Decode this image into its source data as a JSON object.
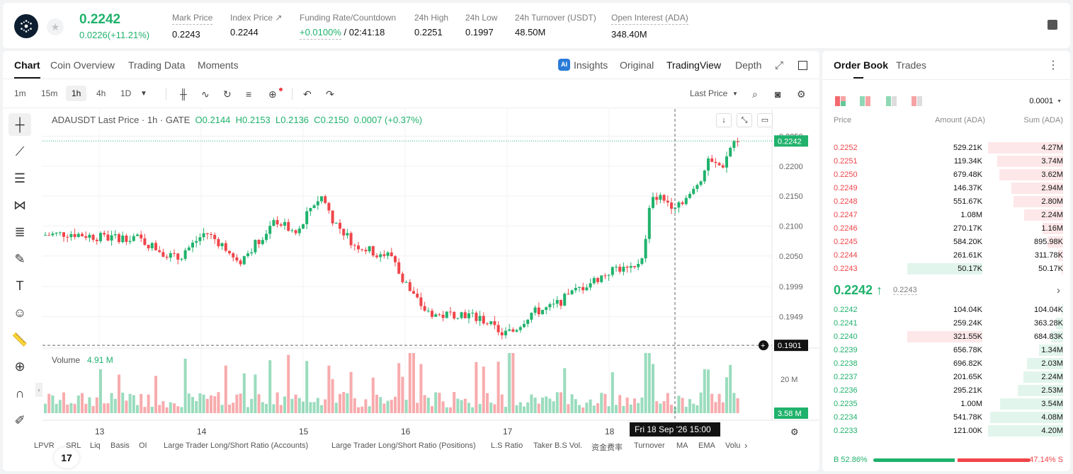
{
  "header": {
    "last_price": "0.2242",
    "change": "0.0226(+11.21%)",
    "stats": [
      {
        "label": "Mark Price",
        "value": "0.2243"
      },
      {
        "label": "Index Price ↗",
        "value": "0.2244"
      },
      {
        "label": "Funding Rate/Countdown",
        "value_rate": "+0.0100%",
        "value_count": "/ 02:41:18"
      },
      {
        "label": "24h High",
        "value": "0.2251"
      },
      {
        "label": "24h Low",
        "value": "0.1997"
      },
      {
        "label": "24h Turnover (USDT)",
        "value": "48.50M"
      },
      {
        "label": "Open Interest (ADA)",
        "value": "348.40M"
      }
    ]
  },
  "chart_tabs": [
    "Chart",
    "Coin Overview",
    "Trading Data",
    "Moments"
  ],
  "chart_modes": [
    "Insights",
    "Original",
    "TradingView",
    "Depth"
  ],
  "timeframes": [
    "1m",
    "15m",
    "1h",
    "4h",
    "1D"
  ],
  "last_price_select": "Last Price",
  "ohlc": {
    "symbol": "ADAUSDT Last Price · 1h · GATE",
    "o": "O0.2144",
    "h": "H0.2153",
    "l": "L0.2136",
    "c": "C0.2150",
    "chg": "0.0007 (+0.37%)"
  },
  "volume_label": "Volume",
  "volume_value": "4.91 M",
  "price_axis": [
    "0.2250",
    "0.2200",
    "0.2150",
    "0.2100",
    "0.2050",
    "0.1999",
    "0.1949"
  ],
  "price_badge": "0.2242",
  "cross_badge": "0.1901",
  "vol_axis": "20 M",
  "vol_badge": "3.58 M",
  "date_axis": [
    "13",
    "14",
    "15",
    "16",
    "17",
    "18"
  ],
  "crosshair_date": "Fri 18 Sep '26   15:00",
  "indicators": [
    "LPVR",
    "SRL",
    "Liq",
    "Basis",
    "OI",
    "Large Trader Long/Short Ratio (Accounts)",
    "Large Trader Long/Short Ratio (Positions)",
    "L.S Ratio",
    "Taker B.S Vol.",
    "资金费率",
    "Turnover",
    "MA",
    "EMA",
    "Volu"
  ],
  "orderbook": {
    "tabs": [
      "Order Book",
      "Trades"
    ],
    "precision": "0.0001",
    "headers": [
      "Price",
      "Amount (ADA)",
      "Sum (ADA)"
    ],
    "asks": [
      {
        "p": "0.2252",
        "a": "529.21K",
        "s": "4.27M",
        "w": 1.0
      },
      {
        "p": "0.2251",
        "a": "119.34K",
        "s": "3.74M",
        "w": 0.88
      },
      {
        "p": "0.2250",
        "a": "679.48K",
        "s": "3.62M",
        "w": 0.85
      },
      {
        "p": "0.2249",
        "a": "146.37K",
        "s": "2.94M",
        "w": 0.69
      },
      {
        "p": "0.2248",
        "a": "551.67K",
        "s": "2.80M",
        "w": 0.66
      },
      {
        "p": "0.2247",
        "a": "1.08M",
        "s": "2.24M",
        "w": 0.52
      },
      {
        "p": "0.2246",
        "a": "270.17K",
        "s": "1.16M",
        "w": 0.27
      },
      {
        "p": "0.2245",
        "a": "584.20K",
        "s": "895.98K",
        "w": 0.21
      },
      {
        "p": "0.2244",
        "a": "261.61K",
        "s": "311.78K",
        "w": 0.07
      },
      {
        "p": "0.2243",
        "a": "50.17K",
        "s": "50.17K",
        "w": 0.01
      }
    ],
    "mid": "0.2242 ↑",
    "mid_mark": "0.2243",
    "bids": [
      {
        "p": "0.2242",
        "a": "104.04K",
        "s": "104.04K",
        "w": 0.02
      },
      {
        "p": "0.2241",
        "a": "259.24K",
        "s": "363.28K",
        "w": 0.09
      },
      {
        "p": "0.2240",
        "a": "321.55K",
        "s": "684.83K",
        "w": 0.16
      },
      {
        "p": "0.2239",
        "a": "656.78K",
        "s": "1.34M",
        "w": 0.32
      },
      {
        "p": "0.2238",
        "a": "696.82K",
        "s": "2.03M",
        "w": 0.48
      },
      {
        "p": "0.2237",
        "a": "201.65K",
        "s": "2.24M",
        "w": 0.53
      },
      {
        "p": "0.2236",
        "a": "295.21K",
        "s": "2.53M",
        "w": 0.6
      },
      {
        "p": "0.2235",
        "a": "1.00M",
        "s": "3.54M",
        "w": 0.84
      },
      {
        "p": "0.2234",
        "a": "541.78K",
        "s": "4.08M",
        "w": 0.97
      },
      {
        "p": "0.2233",
        "a": "121.00K",
        "s": "4.20M",
        "w": 1.0
      }
    ],
    "buy_ratio": "52.86%",
    "sell_ratio": "47.14%",
    "buy_label": "B",
    "sell_label": "S"
  },
  "colors": {
    "up": "#20b26c",
    "down": "#ef454a"
  }
}
